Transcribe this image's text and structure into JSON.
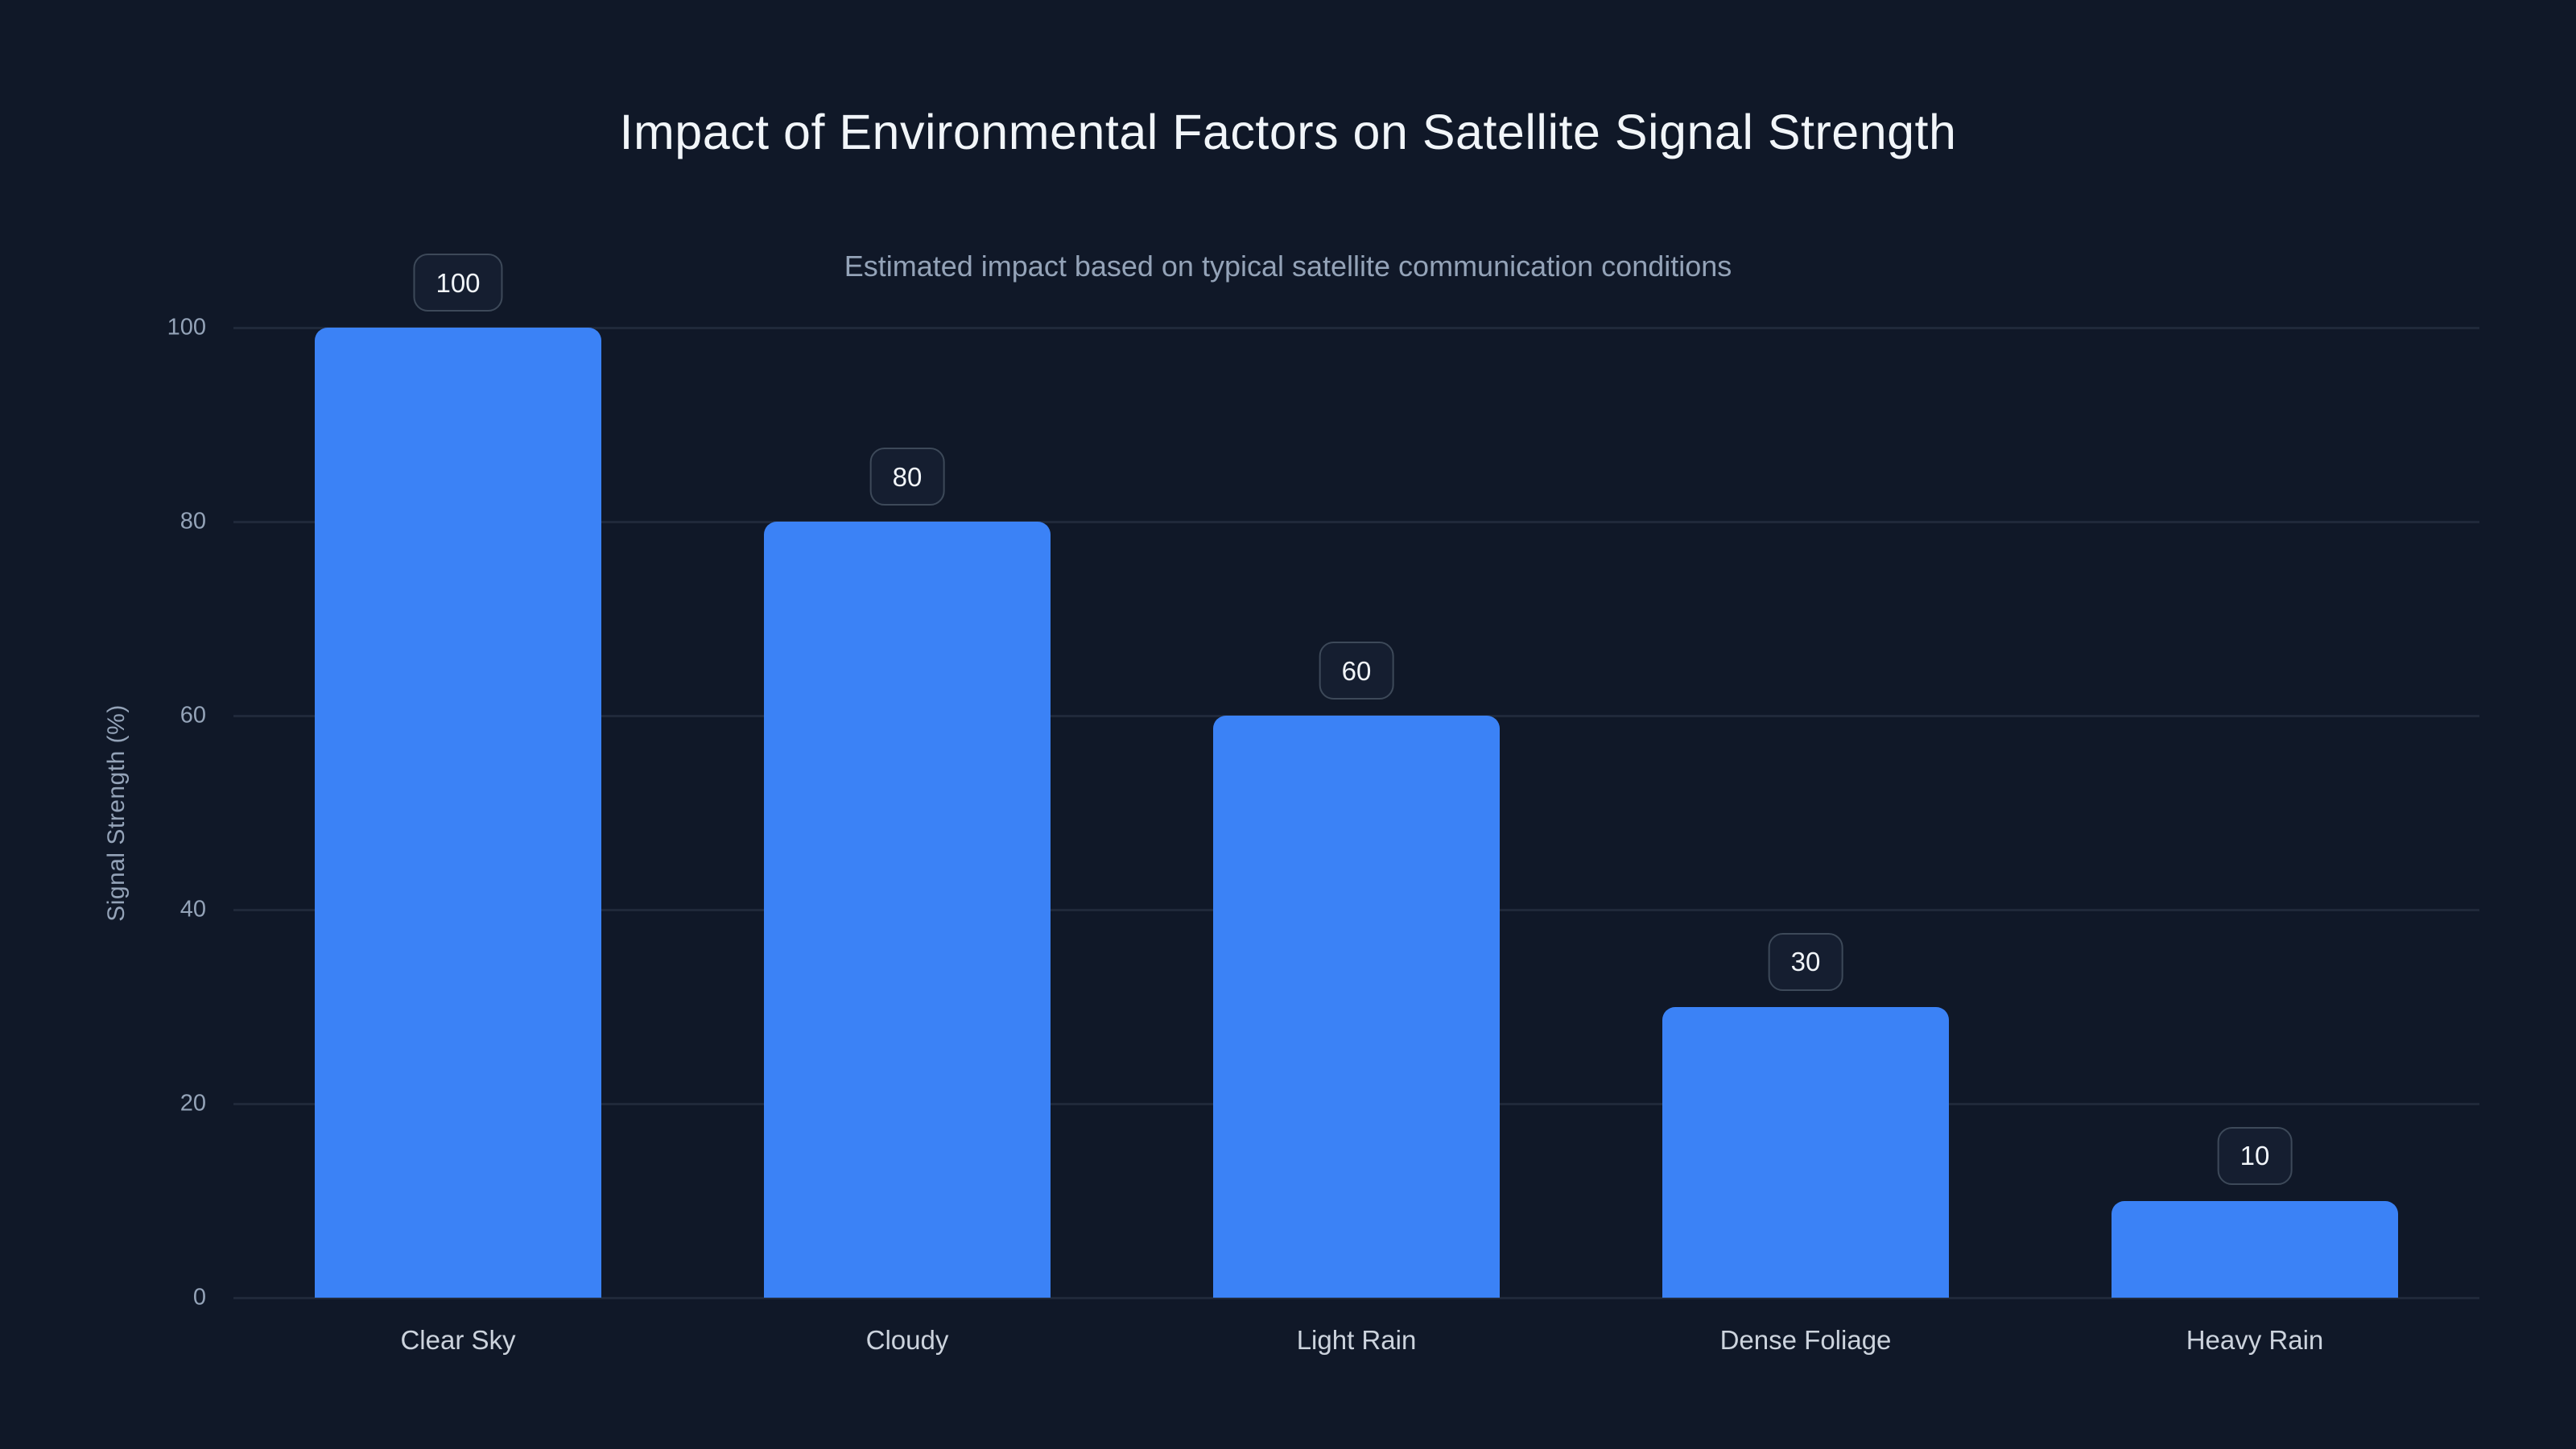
{
  "chart_data": {
    "type": "bar",
    "title": "Impact of Environmental Factors on Satellite Signal Strength",
    "subtitle": "Estimated impact based on typical satellite communication conditions",
    "categories": [
      "Clear Sky",
      "Cloudy",
      "Light Rain",
      "Dense Foliage",
      "Heavy Rain"
    ],
    "values": [
      100,
      80,
      60,
      30,
      10
    ],
    "data_labels": [
      "100",
      "80",
      "60",
      "30",
      "10"
    ],
    "xlabel": "",
    "ylabel": "Signal Strength (%)",
    "ylim": [
      0,
      100
    ],
    "yticks": [
      0,
      20,
      40,
      60,
      80,
      100
    ],
    "grid": "horizontal",
    "legend": "none",
    "bar_color": "#3b82f6"
  },
  "theme": {
    "background": "#101828",
    "title_color": "#f1f5f9",
    "muted_text_color": "#94a3b8",
    "x_label_color": "#ccd3dd",
    "gridline_color": "rgba(148,163,184,0.13)",
    "bar_color": "#3b82f6",
    "badge_background": "#151e30",
    "badge_border": "#3d4959",
    "badge_text_color": "#f1f5f9"
  }
}
